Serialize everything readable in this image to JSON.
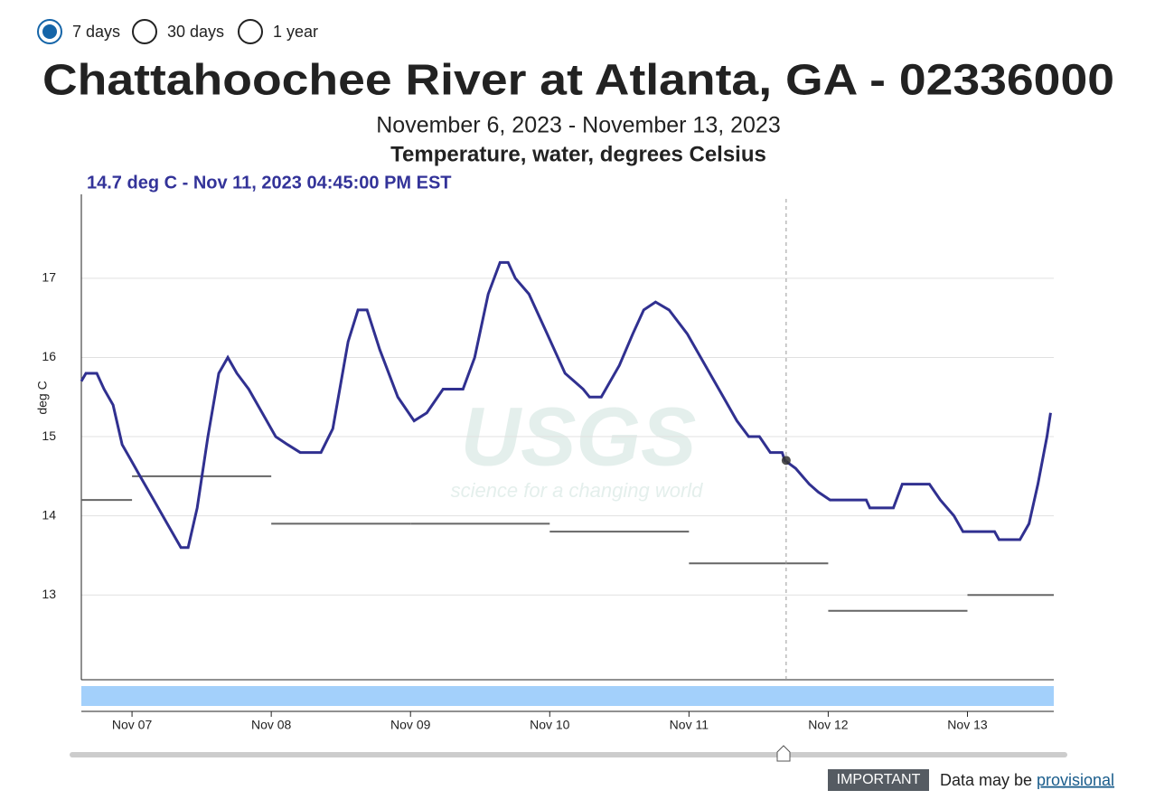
{
  "controls": {
    "options": [
      "7 days",
      "30 days",
      "1 year"
    ],
    "selected": 0
  },
  "chart_data": {
    "type": "line",
    "title": "Chattahoochee River at Atlanta, GA - 02336000",
    "subtitle": "November 6, 2023 - November 13, 2023",
    "parameter": "Temperature, water, degrees Celsius",
    "tooltip": "14.7 deg C - Nov 11, 2023 04:45:00 PM EST",
    "cursor": {
      "x": 11.698,
      "value": 14.7
    },
    "y_label": "deg C",
    "xlim": [
      6.636,
      13.62
    ],
    "xticks": [
      {
        "value": 7,
        "label": "Nov 07"
      },
      {
        "value": 8,
        "label": "Nov 08"
      },
      {
        "value": 9,
        "label": "Nov 09"
      },
      {
        "value": 10,
        "label": "Nov 10"
      },
      {
        "value": 11,
        "label": "Nov 11"
      },
      {
        "value": 12,
        "label": "Nov 12"
      },
      {
        "value": 13,
        "label": "Nov 13"
      }
    ],
    "ylim": [
      11.93,
      18.06
    ],
    "yticks": [
      13,
      14,
      15,
      16,
      17
    ],
    "grid": true,
    "series": [
      {
        "color": "#303090",
        "x": [
          6.636,
          6.669,
          6.747,
          6.799,
          6.864,
          6.929,
          6.994,
          7.058,
          7.156,
          7.253,
          7.351,
          7.403,
          7.468,
          7.545,
          7.623,
          7.688,
          7.753,
          7.838,
          7.935,
          8.032,
          8.117,
          8.208,
          8.357,
          8.442,
          8.552,
          8.623,
          8.688,
          8.779,
          8.909,
          9.026,
          9.117,
          9.234,
          9.377,
          9.461,
          9.558,
          9.643,
          9.701,
          9.753,
          9.851,
          9.981,
          10.11,
          10.24,
          10.286,
          10.37,
          10.5,
          10.597,
          10.675,
          10.76,
          10.857,
          10.987,
          11.117,
          11.247,
          11.344,
          11.429,
          11.506,
          11.584,
          11.669,
          11.688,
          11.766,
          11.864,
          11.929,
          12.013,
          12.273,
          12.299,
          12.468,
          12.532,
          12.61,
          12.727,
          12.805,
          12.903,
          12.968,
          13.195,
          13.227,
          13.377,
          13.442,
          13.506,
          13.571,
          13.597
        ],
        "values": [
          15.7,
          15.8,
          15.8,
          15.6,
          15.4,
          14.9,
          14.7,
          14.5,
          14.2,
          13.9,
          13.6,
          13.6,
          14.1,
          15.0,
          15.8,
          16.0,
          15.8,
          15.6,
          15.3,
          15.0,
          14.9,
          14.8,
          14.8,
          15.1,
          16.2,
          16.6,
          16.6,
          16.1,
          15.5,
          15.2,
          15.3,
          15.6,
          15.6,
          16.0,
          16.8,
          17.2,
          17.2,
          17.0,
          16.8,
          16.3,
          15.8,
          15.6,
          15.5,
          15.5,
          15.9,
          16.3,
          16.6,
          16.7,
          16.6,
          16.3,
          15.9,
          15.5,
          15.2,
          15.0,
          15.0,
          14.8,
          14.8,
          14.7,
          14.6,
          14.4,
          14.3,
          14.2,
          14.2,
          14.1,
          14.1,
          14.4,
          14.4,
          14.4,
          14.2,
          14.0,
          13.8,
          13.8,
          13.7,
          13.7,
          13.9,
          14.4,
          15.0,
          15.3
        ]
      }
    ],
    "step_segments": {
      "color": "#666666",
      "starts": [
        6.636,
        7,
        8,
        9,
        10,
        11,
        12,
        13
      ],
      "values": [
        14.2,
        14.5,
        13.9,
        13.9,
        13.8,
        13.4,
        12.8,
        13.0
      ]
    },
    "watermark": {
      "text": "USGS",
      "tagline": "science for a changing world"
    }
  },
  "notice": {
    "badge": "IMPORTANT",
    "text": "Data may be",
    "link": "provisional"
  }
}
